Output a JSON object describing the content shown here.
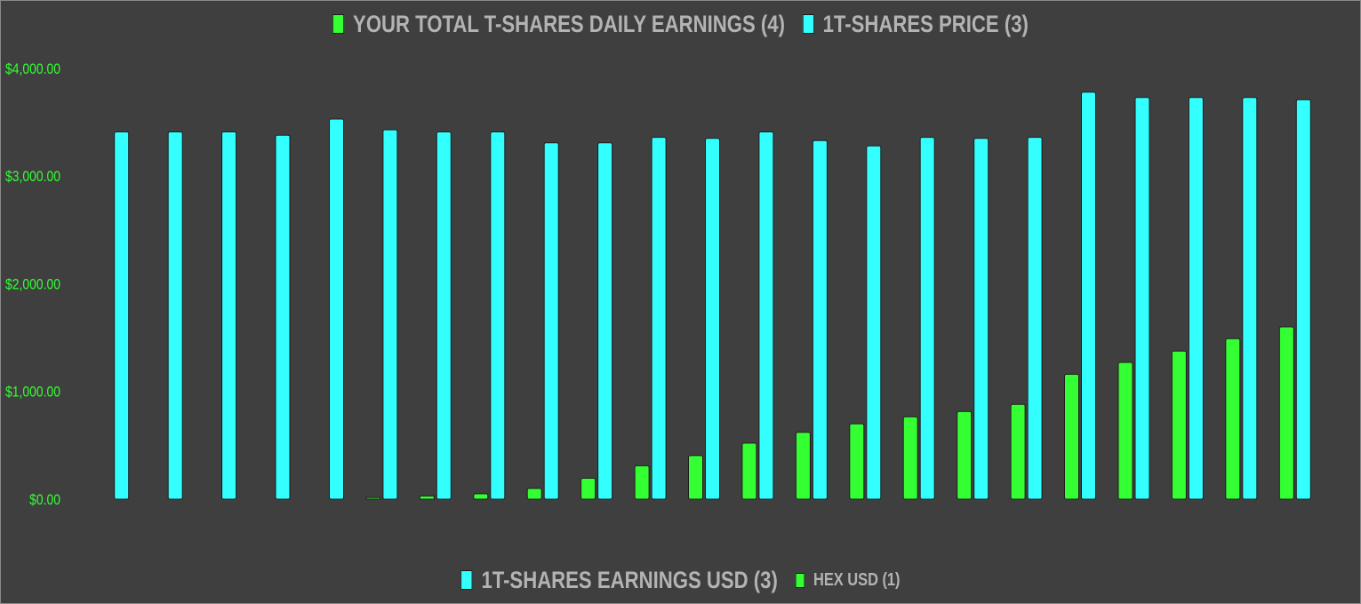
{
  "chart_data": {
    "type": "bar",
    "legend_top": [
      {
        "name": "YOUR TOTAL T-SHARES DAILY EARNINGS (4)",
        "color": "#33ff33"
      },
      {
        "name": "1T-SHARES PRICE (3)",
        "color": "#33ffff"
      }
    ],
    "legend_bottom": [
      {
        "name": "1T-SHARES  EARNINGS USD (3)",
        "color": "#33ffff",
        "size": "large"
      },
      {
        "name": "HEX USD (1)",
        "color": "#33ff33",
        "size": "small"
      }
    ],
    "ylim": [
      0,
      4000
    ],
    "yticks": [
      {
        "value": 0,
        "label": "$0.00"
      },
      {
        "value": 1000,
        "label": "$1,000.00"
      },
      {
        "value": 2000,
        "label": "$2,000.00"
      },
      {
        "value": 3000,
        "label": "$3,000.00"
      },
      {
        "value": 4000,
        "label": "$4,000.00"
      }
    ],
    "grid": false,
    "series": [
      {
        "color": "#33ff33",
        "values": [
          0,
          0,
          0,
          0,
          0,
          15,
          30,
          50,
          100,
          195,
          310,
          405,
          520,
          620,
          700,
          765,
          815,
          880,
          1160,
          1270,
          1375,
          1490,
          1600
        ]
      },
      {
        "color": "#33ffff",
        "values": [
          3410,
          3410,
          3410,
          3380,
          3530,
          3430,
          3410,
          3410,
          3310,
          3310,
          3360,
          3350,
          3410,
          3330,
          3280,
          3360,
          3350,
          3360,
          3780,
          3730,
          3730,
          3730,
          3710
        ]
      }
    ],
    "colors": {
      "background": "#3f3f3f",
      "tick_label": "#33ff33",
      "legend_text": "#b3b3b3"
    }
  }
}
